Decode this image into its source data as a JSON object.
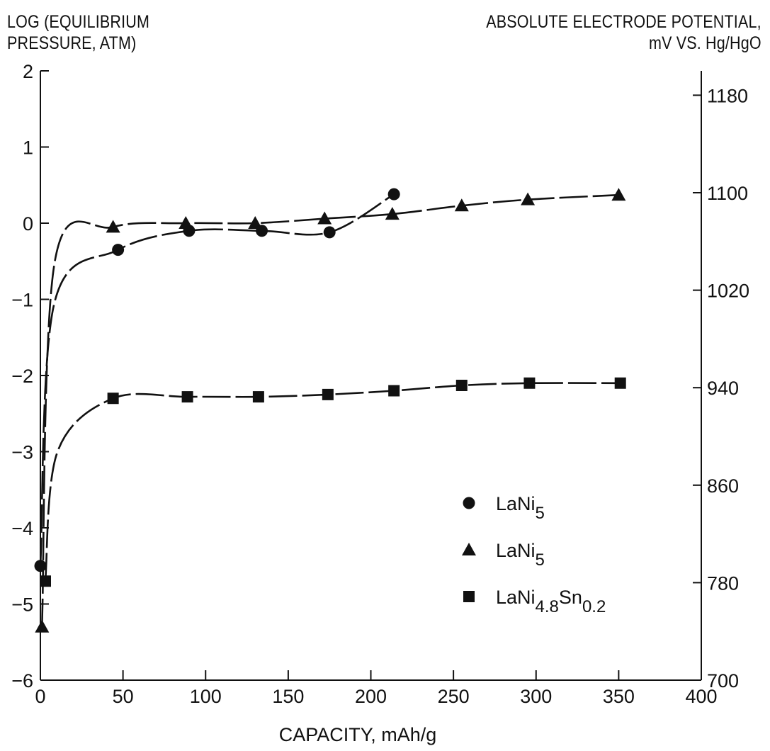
{
  "chart_data": {
    "type": "scatter",
    "left_axis_title": [
      "LOG (EQUILIBRIUM",
      "PRESSURE, ATM)"
    ],
    "right_axis_title": [
      "ABSOLUTE ELECTRODE POTENTIAL,",
      "mV VS. Hg/HgO"
    ],
    "xlabel": "CAPACITY, mAh/g",
    "xlim": [
      0,
      400
    ],
    "ylim": [
      -6,
      2
    ],
    "y2lim": [
      700,
      1200
    ],
    "x_ticks": [
      0,
      50,
      100,
      150,
      200,
      250,
      300,
      350,
      400
    ],
    "y_ticks": [
      -6,
      -5,
      -4,
      -3,
      -2,
      -1,
      0,
      1,
      2
    ],
    "y_tick_labels": [
      "−6",
      "−5",
      "−4",
      "−3",
      "−2",
      "−1",
      "0",
      "1",
      "2"
    ],
    "y2_ticks": [
      700,
      780,
      860,
      940,
      1020,
      1100,
      1180
    ],
    "grid": false,
    "legend_position": "lower-right",
    "series": [
      {
        "name": "LaNi",
        "subscript": "5",
        "marker": "circle",
        "x": [
          0,
          47,
          90,
          134,
          175,
          214
        ],
        "y": [
          -4.5,
          -0.35,
          -0.1,
          -0.1,
          -0.12,
          0.38
        ]
      },
      {
        "name": "LaNi",
        "subscript": "5",
        "marker": "triangle",
        "x": [
          1,
          44,
          88,
          130,
          172,
          213,
          255,
          295,
          350
        ],
        "y": [
          -5.3,
          -0.05,
          0.0,
          0.0,
          0.06,
          0.12,
          0.23,
          0.31,
          0.37
        ]
      },
      {
        "name": "LaNi",
        "subscript": "4.8",
        "name2": "Sn",
        "subscript2": "0.2",
        "marker": "square",
        "x": [
          3,
          44,
          89,
          132,
          174,
          214,
          255,
          296,
          351
        ],
        "y": [
          -4.7,
          -2.3,
          -2.28,
          -2.28,
          -2.25,
          -2.2,
          -2.13,
          -2.1,
          -2.1
        ]
      }
    ]
  }
}
